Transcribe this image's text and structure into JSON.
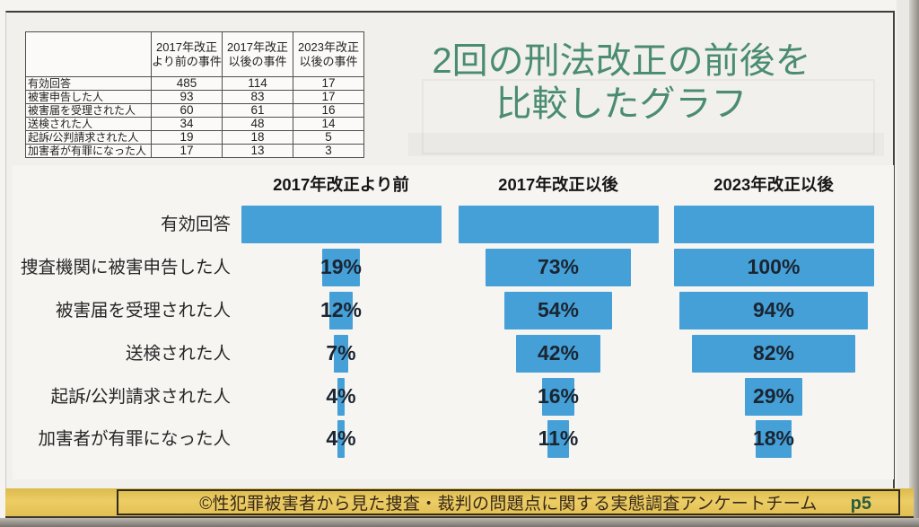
{
  "slide": {
    "title_line1": "2回の刑法改正の前後を",
    "title_line2": "比較したグラフ",
    "title_color": "#4a8c72",
    "footer": {
      "text": "©性犯罪被害者から見た捜査・裁判の問題点に関する実態調査アンケートチーム",
      "page": "p5",
      "bar_color": "#e6c456",
      "text_color": "#38291a",
      "page_color": "#2d5a3e"
    }
  },
  "table": {
    "corner_header": "",
    "col_headers": [
      "2017年改正\nより前の事件",
      "2017年改正\n以後の事件",
      "2023年改正\n以後の事件"
    ],
    "rows": [
      {
        "label": "有効回答",
        "values": [
          "485",
          "114",
          "17"
        ]
      },
      {
        "label": "被害申告した人",
        "values": [
          "93",
          "83",
          "17"
        ]
      },
      {
        "label": "被害届を受理された人",
        "values": [
          "60",
          "61",
          "16"
        ]
      },
      {
        "label": "送検された人",
        "values": [
          "34",
          "48",
          "14"
        ]
      },
      {
        "label": "起訴/公判請求された人",
        "values": [
          "19",
          "18",
          "5"
        ]
      },
      {
        "label": "加害者が有罪になった人",
        "values": [
          "17",
          "13",
          "3"
        ]
      }
    ]
  },
  "chart_data": {
    "type": "bar",
    "subtype": "funnel-comparison",
    "title": "2回の刑法改正の前後を比較したグラフ",
    "column_headers": [
      "2017年改正より前",
      "2017年改正以後",
      "2023年改正以後"
    ],
    "categories": [
      "有効回答",
      "捜査機関に被害申告した人",
      "被害届を受理された人",
      "送検された人",
      "起訴/公判請求された人",
      "加害者が有罪になった人"
    ],
    "series": [
      {
        "name": "2017年改正より前",
        "percent_of_valid": [
          100,
          19,
          12,
          7,
          4,
          4
        ],
        "bar_labels": [
          "",
          "19%",
          "12%",
          "7%",
          "4%",
          "4%"
        ]
      },
      {
        "name": "2017年改正以後",
        "percent_of_valid": [
          100,
          73,
          54,
          42,
          16,
          11
        ],
        "bar_labels": [
          "",
          "73%",
          "54%",
          "42%",
          "16%",
          "11%"
        ]
      },
      {
        "name": "2023年改正以後",
        "percent_of_valid": [
          100,
          100,
          94,
          82,
          29,
          18
        ],
        "bar_labels": [
          "",
          "100%",
          "94%",
          "82%",
          "29%",
          "18%"
        ]
      }
    ],
    "bar_color": "#45a0d8",
    "label_color": "#1b2531",
    "legend_position": "none",
    "grid": false
  }
}
